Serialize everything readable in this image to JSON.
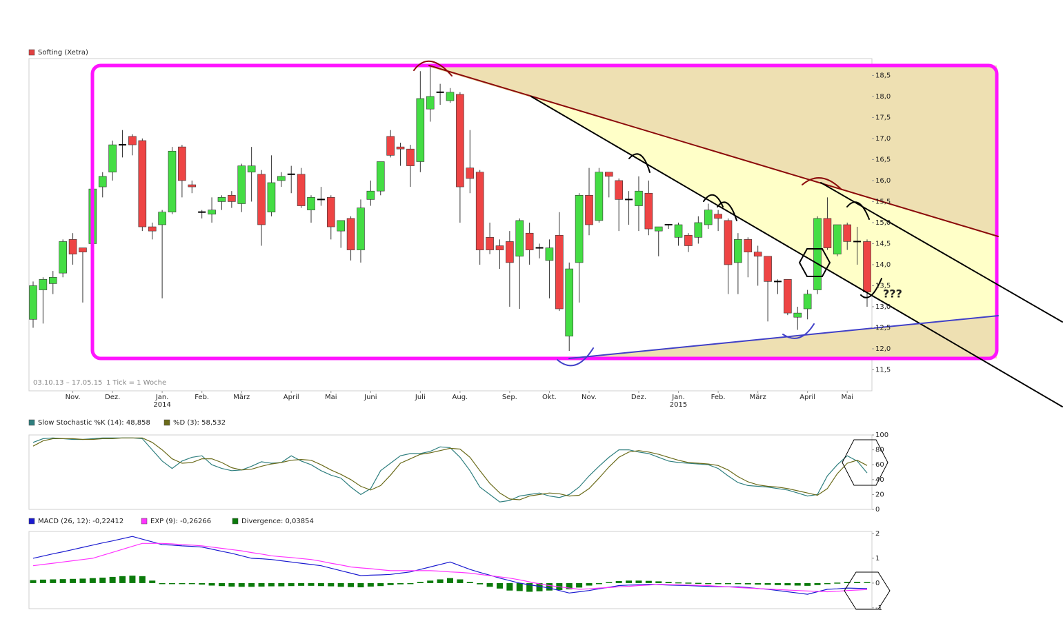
{
  "chart_data": [
    {
      "type": "candlestick",
      "name": "Softing (Xetra)",
      "color": "#e04040",
      "up_color": "#44dd44",
      "down_color": "#ee4444",
      "doji_color": "#000000",
      "date_range": "03.10.13 – 17.05.15",
      "interval": "1 Tick = 1 Woche",
      "annotations": [
        "???"
      ],
      "ylim": [
        11.0,
        18.9
      ],
      "yticks": [
        {
          "value": 11.5,
          "label": "11,5"
        },
        {
          "value": 12.0,
          "label": "12,0"
        },
        {
          "value": 12.5,
          "label": "12,5"
        },
        {
          "value": 13.0,
          "label": "13,0"
        },
        {
          "value": 13.5,
          "label": "13,5"
        },
        {
          "value": 14.0,
          "label": "14,0"
        },
        {
          "value": 14.5,
          "label": "14,5"
        },
        {
          "value": 15.0,
          "label": "15,0"
        },
        {
          "value": 15.5,
          "label": "15,5"
        },
        {
          "value": 16.0,
          "label": "16,0"
        },
        {
          "value": 16.5,
          "label": "16,5"
        },
        {
          "value": 17.0,
          "label": "17,0"
        },
        {
          "value": 17.5,
          "label": "17,5"
        },
        {
          "value": 18.0,
          "label": "18,0"
        },
        {
          "value": 18.5,
          "label": "18,5"
        }
      ],
      "xticks": [
        {
          "value": 4,
          "label": "Nov."
        },
        {
          "value": 8,
          "label": "Dez."
        },
        {
          "value": 13,
          "label": "Jan."
        },
        {
          "value": 17,
          "label": "Feb."
        },
        {
          "value": 21,
          "label": "März"
        },
        {
          "value": 26,
          "label": "April"
        },
        {
          "value": 30,
          "label": "Mai"
        },
        {
          "value": 34,
          "label": "Juni"
        },
        {
          "value": 39,
          "label": "Juli"
        },
        {
          "value": 43,
          "label": "Aug."
        },
        {
          "value": 48,
          "label": "Sep."
        },
        {
          "value": 52,
          "label": "Okt."
        },
        {
          "value": 56,
          "label": "Nov."
        },
        {
          "value": 61,
          "label": "Dez."
        },
        {
          "value": 65,
          "label": "Jan."
        },
        {
          "value": 69,
          "label": "Feb."
        },
        {
          "value": 73,
          "label": "März"
        },
        {
          "value": 78,
          "label": "April"
        },
        {
          "value": 82,
          "label": "Mai"
        }
      ],
      "year_labels": [
        {
          "value": 13,
          "label": "2014"
        },
        {
          "value": 65,
          "label": "2015"
        }
      ],
      "ohlc": {
        "open": [
          12.7,
          13.4,
          13.55,
          13.8,
          14.6,
          14.4,
          14.5,
          15.85,
          16.2,
          16.85,
          17.05,
          16.95,
          14.9,
          14.95,
          15.25,
          16.8,
          15.9,
          15.25,
          15.2,
          15.5,
          15.65,
          15.45,
          16.2,
          16.15,
          15.25,
          16.0,
          16.15,
          16.15,
          15.3,
          15.55,
          15.6,
          14.8,
          15.1,
          14.35,
          15.55,
          15.75,
          17.05,
          16.8,
          16.75,
          16.45,
          17.7,
          18.1,
          17.9,
          18.05,
          16.3,
          16.2,
          14.65,
          14.45,
          14.55,
          14.2,
          14.75,
          14.4,
          14.1,
          14.7,
          12.3,
          14.05,
          15.65,
          15.05,
          16.2,
          16.0,
          15.55,
          15.4,
          15.7,
          14.8,
          14.95,
          14.65,
          14.7,
          14.65,
          14.95,
          15.2,
          15.05,
          14.05,
          14.6,
          14.3,
          14.2,
          13.6,
          13.65,
          12.75,
          12.95,
          13.4,
          15.1,
          14.25,
          14.95,
          14.55,
          14.55
        ],
        "high": [
          13.6,
          13.7,
          13.85,
          14.6,
          14.75,
          14.4,
          15.8,
          16.2,
          16.95,
          17.2,
          17.1,
          17.0,
          15.0,
          15.3,
          16.8,
          16.85,
          16.0,
          15.3,
          15.6,
          15.65,
          15.75,
          16.4,
          16.8,
          16.25,
          16.6,
          16.2,
          16.35,
          16.3,
          15.65,
          15.85,
          15.65,
          15.05,
          15.15,
          15.55,
          16.0,
          16.45,
          17.2,
          16.9,
          16.85,
          18.6,
          18.7,
          18.3,
          18.2,
          18.1,
          17.2,
          16.25,
          15.0,
          14.6,
          14.8,
          15.1,
          15.0,
          14.5,
          14.6,
          15.25,
          14.05,
          15.7,
          16.3,
          16.3,
          16.2,
          16.05,
          15.75,
          16.1,
          16.0,
          14.9,
          14.95,
          15.0,
          14.75,
          15.15,
          15.45,
          15.3,
          15.1,
          14.75,
          14.65,
          14.45,
          14.2,
          13.65,
          13.65,
          13.0,
          13.4,
          15.15,
          15.6,
          14.95,
          15.0,
          14.9,
          14.6
        ],
        "low": [
          12.5,
          12.6,
          13.3,
          13.7,
          14.0,
          13.1,
          14.5,
          15.6,
          16.0,
          16.55,
          16.6,
          14.8,
          14.6,
          13.2,
          15.2,
          15.6,
          15.7,
          15.1,
          15.0,
          15.3,
          15.35,
          15.25,
          15.5,
          14.45,
          15.15,
          15.85,
          15.7,
          15.35,
          15.0,
          15.4,
          14.6,
          14.4,
          14.1,
          14.05,
          15.4,
          15.65,
          16.55,
          16.35,
          15.85,
          16.2,
          17.4,
          17.8,
          17.85,
          15.0,
          15.7,
          14.0,
          14.25,
          13.9,
          13.0,
          12.95,
          14.0,
          14.15,
          13.2,
          12.9,
          11.95,
          13.1,
          14.7,
          15.0,
          15.6,
          14.8,
          14.95,
          14.8,
          14.7,
          14.2,
          14.85,
          14.45,
          14.3,
          14.5,
          14.85,
          14.8,
          13.3,
          13.3,
          13.7,
          13.5,
          12.65,
          13.3,
          12.8,
          12.45,
          12.7,
          13.3,
          14.35,
          14.2,
          14.35,
          14.0,
          13.0
        ],
        "close": [
          13.5,
          13.65,
          13.7,
          14.55,
          14.25,
          14.3,
          15.8,
          16.1,
          16.85,
          16.85,
          16.85,
          14.9,
          14.8,
          15.25,
          16.7,
          16.0,
          15.85,
          15.25,
          15.3,
          15.6,
          15.5,
          16.35,
          16.35,
          14.95,
          15.95,
          16.1,
          16.15,
          15.4,
          15.6,
          15.55,
          14.9,
          15.05,
          14.35,
          15.35,
          15.75,
          16.45,
          16.6,
          16.75,
          16.35,
          17.95,
          18.0,
          18.1,
          18.1,
          15.85,
          16.05,
          14.35,
          14.35,
          14.35,
          14.05,
          15.05,
          14.35,
          14.4,
          14.4,
          12.95,
          13.9,
          15.65,
          14.95,
          16.2,
          16.1,
          15.55,
          15.55,
          15.75,
          14.85,
          14.9,
          14.95,
          14.95,
          14.45,
          15.0,
          15.3,
          15.1,
          14.0,
          14.6,
          14.3,
          14.2,
          13.6,
          13.6,
          12.85,
          12.85,
          13.3,
          15.1,
          14.4,
          14.95,
          14.55,
          14.55,
          13.35
        ]
      }
    },
    {
      "type": "line",
      "ylim": [
        0,
        100
      ],
      "yticks": [
        0,
        20,
        40,
        60,
        80,
        100
      ],
      "series": [
        {
          "name": "Slow Stochastic %K (14): 48,858",
          "color": "#2f7f7f",
          "values": [
            90,
            95,
            96,
            95,
            94,
            94,
            95,
            96,
            96,
            96,
            96,
            95,
            80,
            65,
            55,
            65,
            70,
            72,
            60,
            55,
            52,
            53,
            58,
            64,
            62,
            63,
            72,
            65,
            60,
            52,
            46,
            42,
            30,
            20,
            28,
            52,
            62,
            72,
            75,
            75,
            78,
            84,
            83,
            70,
            52,
            30,
            20,
            10,
            12,
            18,
            20,
            22,
            18,
            16,
            20,
            30,
            45,
            58,
            70,
            80,
            80,
            77,
            75,
            70,
            65,
            63,
            62,
            61,
            60,
            55,
            45,
            36,
            32,
            31,
            30,
            28,
            26,
            22,
            18,
            20,
            45,
            60,
            72,
            65,
            49
          ]
        },
        {
          "name": "%D (3): 58,532",
          "color": "#6b6b1a",
          "values": [
            85,
            92,
            95,
            95,
            95,
            94,
            94,
            95,
            95,
            96,
            96,
            96,
            90,
            80,
            68,
            62,
            63,
            68,
            68,
            63,
            56,
            53,
            54,
            58,
            61,
            63,
            66,
            67,
            66,
            60,
            53,
            47,
            40,
            31,
            26,
            32,
            46,
            62,
            68,
            74,
            76,
            79,
            82,
            81,
            70,
            52,
            35,
            22,
            14,
            13,
            18,
            20,
            22,
            21,
            18,
            19,
            28,
            42,
            57,
            70,
            77,
            79,
            77,
            74,
            70,
            66,
            63,
            62,
            61,
            59,
            53,
            44,
            37,
            33,
            31,
            30,
            28,
            25,
            22,
            19,
            28,
            48,
            62,
            66,
            59
          ]
        }
      ]
    },
    {
      "type": "line",
      "ylim": [
        -1.03,
        2.08
      ],
      "yticks": [
        -1,
        0,
        1,
        2
      ],
      "series": [
        {
          "name": "MACD (26, 12): -0,22412",
          "color": "#1a1ad0",
          "style": "line",
          "values": [
            1.0,
            1.09,
            1.18,
            1.26,
            1.35,
            1.44,
            1.53,
            1.62,
            1.7,
            1.79,
            1.88,
            1.77,
            1.66,
            1.55,
            1.53,
            1.5,
            1.48,
            1.45,
            1.37,
            1.28,
            1.2,
            1.1,
            1.0,
            0.98,
            0.95,
            0.9,
            0.85,
            0.8,
            0.75,
            0.7,
            0.6,
            0.5,
            0.4,
            0.3,
            0.32,
            0.33,
            0.35,
            0.4,
            0.45,
            0.55,
            0.65,
            0.75,
            0.85,
            0.7,
            0.55,
            0.43,
            0.32,
            0.2,
            0.1,
            0.0,
            -0.07,
            -0.13,
            -0.2,
            -0.3,
            -0.4,
            -0.35,
            -0.3,
            -0.23,
            -0.17,
            -0.1,
            -0.08,
            -0.07,
            -0.05,
            -0.06,
            -0.08,
            -0.09,
            -0.1,
            -0.12,
            -0.13,
            -0.15,
            -0.15,
            -0.15,
            -0.18,
            -0.22,
            -0.25,
            -0.3,
            -0.35,
            -0.4,
            -0.45,
            -0.35,
            -0.25,
            -0.23,
            -0.2,
            -0.21,
            -0.22
          ]
        },
        {
          "name": "EXP (9): -0,26266",
          "color": "#ff33ff",
          "style": "line",
          "values": [
            0.7,
            0.75,
            0.8,
            0.85,
            0.9,
            0.95,
            1.0,
            1.12,
            1.24,
            1.36,
            1.48,
            1.6,
            1.6,
            1.6,
            1.58,
            1.55,
            1.53,
            1.5,
            1.45,
            1.4,
            1.35,
            1.3,
            1.23,
            1.17,
            1.1,
            1.06,
            1.03,
            0.99,
            0.95,
            0.88,
            0.8,
            0.73,
            0.65,
            0.61,
            0.58,
            0.54,
            0.5,
            0.5,
            0.5,
            0.5,
            0.5,
            0.48,
            0.45,
            0.43,
            0.4,
            0.35,
            0.3,
            0.25,
            0.2,
            0.13,
            0.05,
            -0.03,
            -0.1,
            -0.15,
            -0.2,
            -0.25,
            -0.23,
            -0.2,
            -0.18,
            -0.15,
            -0.13,
            -0.1,
            -0.08,
            -0.05,
            -0.06,
            -0.07,
            -0.08,
            -0.09,
            -0.1,
            -0.13,
            -0.15,
            -0.18,
            -0.2,
            -0.22,
            -0.24,
            -0.26,
            -0.28,
            -0.3,
            -0.32,
            -0.33,
            -0.35,
            -0.33,
            -0.3,
            -0.28,
            -0.26
          ]
        },
        {
          "name": "Divergence: 0,03854",
          "color": "#0b7a0b",
          "style": "bar",
          "values": [
            0.12,
            0.14,
            0.15,
            0.16,
            0.17,
            0.18,
            0.2,
            0.22,
            0.25,
            0.28,
            0.3,
            0.28,
            0.1,
            0.0,
            -0.02,
            -0.03,
            -0.04,
            -0.06,
            -0.1,
            -0.12,
            -0.14,
            -0.15,
            -0.15,
            -0.14,
            -0.13,
            -0.13,
            -0.12,
            -0.11,
            -0.11,
            -0.12,
            -0.13,
            -0.15,
            -0.16,
            -0.17,
            -0.14,
            -0.12,
            -0.08,
            -0.05,
            -0.03,
            0.05,
            0.1,
            0.15,
            0.2,
            0.15,
            0.05,
            -0.05,
            -0.15,
            -0.22,
            -0.3,
            -0.32,
            -0.35,
            -0.33,
            -0.3,
            -0.28,
            -0.25,
            -0.18,
            -0.1,
            -0.02,
            0.04,
            0.08,
            0.1,
            0.1,
            0.09,
            0.07,
            0.05,
            0.03,
            0.02,
            0.01,
            0.0,
            -0.02,
            -0.03,
            -0.04,
            -0.05,
            -0.06,
            -0.07,
            -0.08,
            -0.09,
            -0.1,
            -0.11,
            -0.08,
            -0.02,
            0.02,
            0.05,
            0.05,
            0.04
          ]
        }
      ]
    }
  ]
}
